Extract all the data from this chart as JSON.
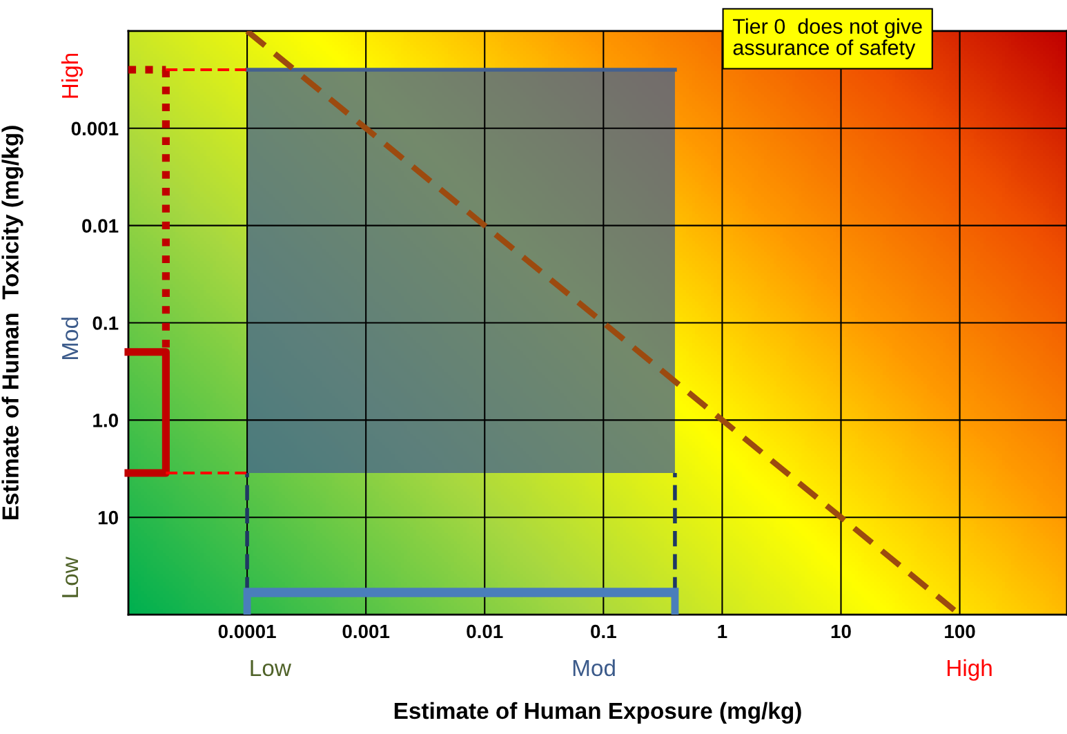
{
  "chart_data": {
    "type": "line",
    "xlabel": "Estimate of Human Exposure (mg/kg)",
    "ylabel": "Estimate of Human  Toxicity (mg/kg)",
    "log": "xy",
    "xlim": [
      1e-05,
      800
    ],
    "xticks": [
      0.0001,
      0.001,
      0.01,
      0.1,
      1,
      10,
      100
    ],
    "ylim": [
      100,
      0.0001
    ],
    "yticks": [
      0.001,
      0.01,
      0.1,
      {
        "value": 1,
        "label": "1.0"
      },
      10
    ],
    "grid": true,
    "legend": false,
    "series": [
      {
        "color": "#44618f",
        "marker": "none",
        "x": [
          0.0001,
          0.4
        ],
        "values": [
          0.00025,
          0.00025
        ],
        "lower": [
          3.5,
          3.5
        ],
        "upper": [
          0.00025,
          0.00025
        ]
      },
      {
        "color": "#9c4a0f",
        "line_style": "dashed",
        "marker": "none",
        "x": [
          0.0001,
          90
        ],
        "values": [
          0.0001,
          90
        ]
      }
    ],
    "annotations": [
      "Low",
      "Mod",
      "High",
      "High",
      "Mod",
      "Low",
      "Tier 0  does not give\nassurance of safety"
    ]
  }
}
